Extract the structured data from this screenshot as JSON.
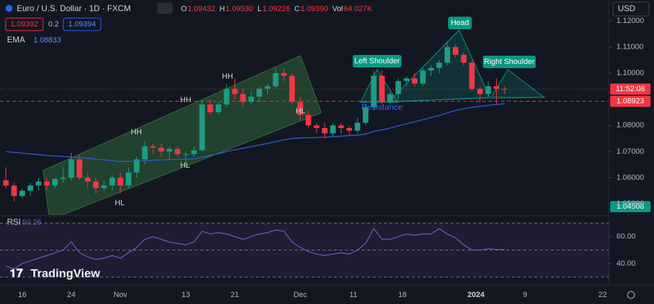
{
  "header": {
    "symbol": "Euro / U.S. Dollar · 1D · FXCM",
    "ohlc": [
      {
        "label": "O",
        "value": "1.09432"
      },
      {
        "label": "H",
        "value": "1.09530"
      },
      {
        "label": "L",
        "value": "1.09226"
      },
      {
        "label": "C",
        "value": "1.09390"
      },
      {
        "label": "Vol",
        "value": "64.027K"
      }
    ],
    "sell": "1.09392",
    "spread": "0.2",
    "buy": "1.09394",
    "currency": "USD",
    "logo": "TradingView"
  },
  "chart_data": {
    "type": "candlestick",
    "categories": [
      null,
      null,
      null,
      null,
      null,
      null,
      null,
      null,
      null,
      null,
      null,
      null,
      null,
      null,
      null,
      null,
      null,
      null,
      null,
      null,
      null,
      null,
      null,
      null,
      null,
      null,
      null,
      null,
      null,
      null,
      null,
      null,
      null,
      null,
      null,
      null,
      null,
      null,
      null,
      null,
      null,
      null,
      null,
      null,
      null,
      null,
      null,
      null,
      null,
      null,
      null,
      null,
      null,
      null,
      null,
      null,
      null,
      null,
      null,
      null,
      null,
      null
    ],
    "open": [
      1.059,
      1.057,
      1.053,
      1.055,
      1.057,
      1.0585,
      1.057,
      1.0595,
      1.06,
      1.067,
      1.06,
      1.0585,
      1.056,
      1.057,
      1.06,
      1.057,
      1.062,
      1.067,
      1.072,
      1.0715,
      1.07,
      1.071,
      1.069,
      1.069,
      1.0705,
      1.088,
      1.085,
      1.088,
      1.094,
      1.092,
      1.089,
      1.091,
      1.094,
      1.095,
      1.1,
      1.099,
      1.089,
      1.084,
      1.08,
      1.079,
      1.077,
      1.08,
      1.079,
      1.078,
      1.081,
      1.087,
      1.099,
      1.089,
      1.092,
      1.097,
      1.098,
      1.096,
      1.101,
      1.102,
      1.104,
      1.11,
      1.107,
      1.104,
      1.094,
      1.092,
      1.095,
      1.094
    ],
    "high": [
      1.064,
      1.058,
      1.056,
      1.058,
      1.06,
      1.06,
      1.06,
      1.064,
      1.0695,
      1.069,
      1.062,
      1.06,
      1.059,
      1.061,
      1.062,
      1.064,
      1.068,
      1.074,
      1.073,
      1.073,
      1.072,
      1.072,
      1.07,
      1.072,
      1.089,
      1.09,
      1.089,
      1.096,
      1.098,
      1.094,
      1.093,
      1.095,
      1.096,
      1.102,
      1.102,
      1.1,
      1.091,
      1.086,
      1.081,
      1.081,
      1.081,
      1.081,
      1.08,
      1.083,
      1.088,
      1.101,
      1.101,
      1.093,
      1.098,
      1.099,
      1.1,
      1.102,
      1.103,
      1.105,
      1.112,
      1.111,
      1.108,
      1.105,
      1.095,
      1.097,
      1.098,
      1.095
    ],
    "low": [
      1.056,
      1.051,
      1.052,
      1.053,
      1.055,
      1.0555,
      1.056,
      1.058,
      1.059,
      1.059,
      1.056,
      1.054,
      1.055,
      1.055,
      1.054,
      1.056,
      1.06,
      1.065,
      1.069,
      1.068,
      1.067,
      1.068,
      1.066,
      1.068,
      1.07,
      1.084,
      1.084,
      1.087,
      1.09,
      1.087,
      1.088,
      1.089,
      1.092,
      1.094,
      1.097,
      1.088,
      1.082,
      1.079,
      1.077,
      1.075,
      1.076,
      1.077,
      1.076,
      1.077,
      1.08,
      1.086,
      1.088,
      1.088,
      1.09,
      1.095,
      1.095,
      1.095,
      1.099,
      1.1,
      1.103,
      1.106,
      1.103,
      1.093,
      1.089,
      1.091,
      1.088,
      1.092
    ],
    "close": [
      1.057,
      1.053,
      1.055,
      1.057,
      1.0585,
      1.057,
      1.0595,
      1.06,
      1.067,
      1.06,
      1.0585,
      1.056,
      1.057,
      1.06,
      1.057,
      1.062,
      1.067,
      1.072,
      1.0715,
      1.07,
      1.071,
      1.069,
      1.069,
      1.0705,
      1.088,
      1.085,
      1.088,
      1.094,
      1.092,
      1.089,
      1.091,
      1.094,
      1.095,
      1.1,
      1.099,
      1.089,
      1.084,
      1.08,
      1.079,
      1.077,
      1.08,
      1.079,
      1.078,
      1.081,
      1.087,
      1.099,
      1.089,
      1.092,
      1.097,
      1.098,
      1.096,
      1.101,
      1.102,
      1.104,
      1.11,
      1.107,
      1.104,
      1.094,
      1.092,
      1.095,
      1.094,
      1.0939
    ],
    "up_color": "#1f9c84",
    "down_color": "#f23645",
    "ema": {
      "name": "EMA",
      "value_label": "1.08833",
      "color": "#2e5fd6",
      "values": [
        1.07,
        1.0697,
        1.0694,
        1.0691,
        1.0688,
        1.0685,
        1.0683,
        1.0681,
        1.0679,
        1.0677,
        1.0674,
        1.0671,
        1.0668,
        1.0665,
        1.0662,
        1.0662,
        1.0663,
        1.0665,
        1.0667,
        1.0668,
        1.0669,
        1.067,
        1.0671,
        1.0672,
        1.0678,
        1.0685,
        1.0692,
        1.07,
        1.0707,
        1.0713,
        1.0719,
        1.0725,
        1.0731,
        1.0738,
        1.0745,
        1.075,
        1.0752,
        1.0753,
        1.0754,
        1.0755,
        1.0757,
        1.0759,
        1.0761,
        1.0763,
        1.0767,
        1.0777,
        1.0783,
        1.079,
        1.0798,
        1.0806,
        1.0814,
        1.0822,
        1.083,
        1.0838,
        1.0848,
        1.0857,
        1.0864,
        1.0869,
        1.0873,
        1.0877,
        1.088,
        1.0883
      ]
    },
    "ylim": [
      1.046,
      1.128
    ],
    "yticks": [
      {
        "value": 1.12,
        "label": "1.12000"
      },
      {
        "value": 1.11,
        "label": "1.11000"
      },
      {
        "value": 1.1,
        "label": "1.10000"
      },
      {
        "value": 1.08,
        "label": "1.08000"
      },
      {
        "value": 1.07,
        "label": "1.07000"
      },
      {
        "value": 1.06,
        "label": "1.06000"
      },
      {
        "value": 1.05,
        "label": "1.05000"
      }
    ],
    "xticks": [
      {
        "value": 2,
        "label": "16"
      },
      {
        "value": 8,
        "label": "24"
      },
      {
        "value": 14,
        "label": "Nov"
      },
      {
        "value": 22,
        "label": "13"
      },
      {
        "value": 28,
        "label": "21"
      },
      {
        "value": 36,
        "label": "Dec"
      },
      {
        "value": 42.5,
        "label": "11"
      },
      {
        "value": 48.5,
        "label": "18"
      },
      {
        "value": 57.5,
        "label": "2024"
      },
      {
        "value": 63.5,
        "label": "9"
      },
      {
        "value": 73,
        "label": "22"
      }
    ],
    "price_lines": [
      {
        "value": 1.0939,
        "badge": "11:52:08",
        "color": "#f23645"
      },
      {
        "value": 1.08923,
        "badge": "1.08923",
        "color": "#f23645"
      }
    ],
    "low_badge": "1.04508",
    "annotations": {
      "hh": [
        "HH",
        "HH",
        "HH"
      ],
      "hl": [
        "HL",
        "HL",
        "HL"
      ],
      "left_shoulder": "Left Shoulder",
      "head": "Head",
      "right_shoulder": "Right Shoulder",
      "resistance": "Resistance"
    },
    "rsi": {
      "name": "RSI",
      "value_label": "50.26",
      "color": "#7e57c2",
      "ylim": [
        27,
        72.5
      ],
      "bands": [
        70,
        50,
        30
      ],
      "yticks": [
        {
          "value": 60,
          "label": "60.00"
        },
        {
          "value": 40,
          "label": "40.00"
        }
      ],
      "values": [
        38,
        36,
        40,
        42,
        44,
        46,
        48,
        50,
        56,
        48,
        45,
        43,
        44,
        46,
        44,
        48,
        52,
        58,
        60,
        58,
        56,
        55,
        54,
        56,
        64,
        62,
        63,
        62,
        60,
        58,
        60,
        62,
        63,
        65,
        64,
        56,
        52,
        49,
        47,
        46,
        47,
        48,
        47,
        50,
        55,
        66,
        58,
        58,
        60,
        62,
        61,
        62,
        62,
        66,
        62,
        59,
        54,
        50,
        50,
        51,
        50.5,
        50.26
      ]
    }
  }
}
